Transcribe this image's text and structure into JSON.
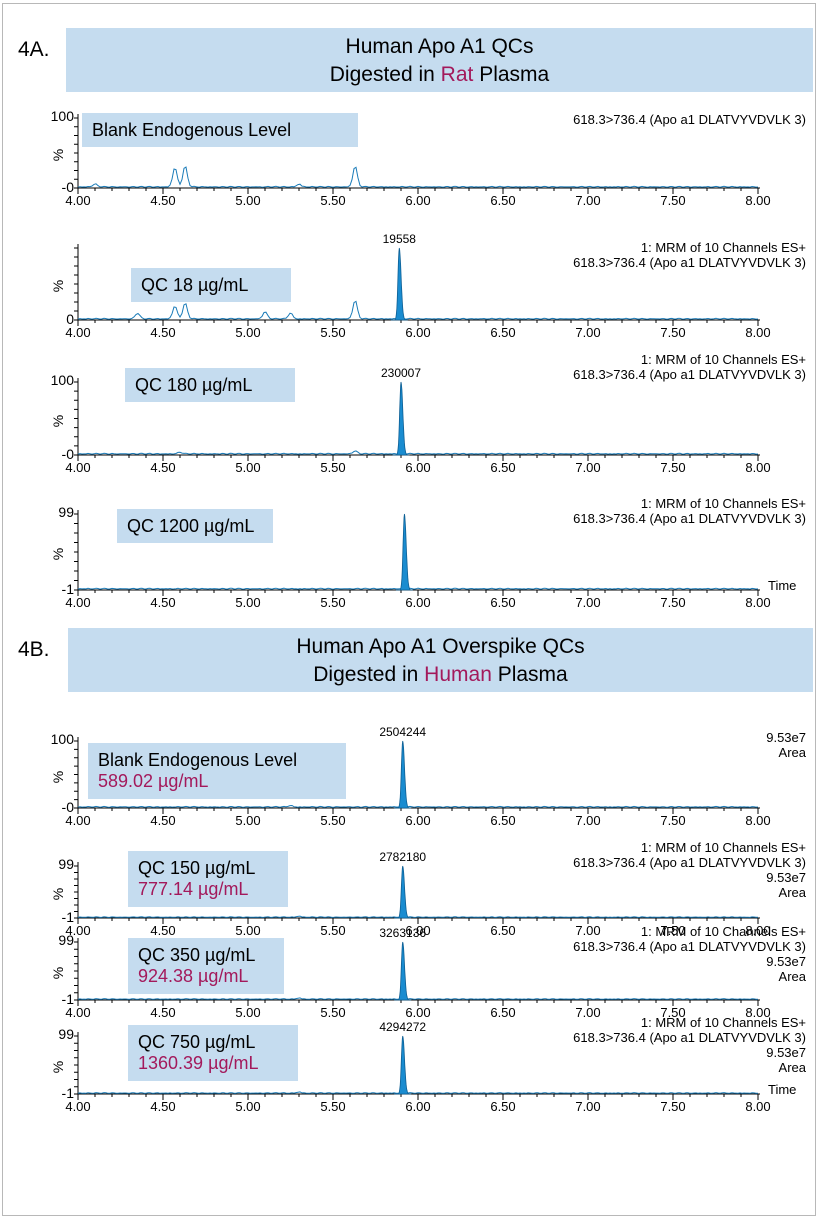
{
  "sections": [
    {
      "id": "4A.",
      "title_line1": "Human Apo A1 QCs",
      "title_line2_pre": "Digested in ",
      "title_line2_hl": "Rat",
      "title_line2_post": " Plasma"
    },
    {
      "id": "4B.",
      "title_line1": "Human Apo A1 Overspike QCs",
      "title_line2_pre": "Digested in ",
      "title_line2_hl": "Human",
      "title_line2_post": " Plasma"
    }
  ],
  "colors": {
    "trace": "#1a7bb8",
    "fill": "#1a8cd0",
    "label_bg": "#c5dcef",
    "highlight": "#a3195b"
  },
  "chart_data": [
    {
      "type": "line",
      "xlabel": "",
      "xlim": [
        4.0,
        8.0
      ],
      "xticks": [
        "4.00",
        "4.50",
        "5.00",
        "5.50",
        "6.00",
        "6.50",
        "7.00",
        "7.50",
        "8.00"
      ],
      "yticks": [
        "100",
        "-0"
      ],
      "ylabel": "%",
      "label": "Blank Endogenous  Level",
      "conc": "",
      "annotation": [
        "618.3>736.4 (Apo a1 DLATVYVDVLK 3)"
      ],
      "peak_label": "",
      "peak_rt": 5.89,
      "peak_height": 0,
      "noise": [
        [
          4.57,
          28
        ],
        [
          4.63,
          30
        ],
        [
          5.63,
          30
        ],
        [
          5.3,
          4
        ],
        [
          4.1,
          4
        ]
      ]
    },
    {
      "type": "line",
      "xlabel": "",
      "xlim": [
        4.0,
        8.0
      ],
      "xticks": [
        "4.00",
        "4.50",
        "5.00",
        "5.50",
        "6.00",
        "6.50",
        "7.00",
        "7.50",
        "8.00"
      ],
      "yticks": [
        "0"
      ],
      "ylabel": "%",
      "label": "QC 18 µg/mL",
      "conc": "",
      "annotation": [
        "1: MRM of 10 Channels ES+",
        "618.3>736.4 (Apo a1 DLATVYVDVLK 3)"
      ],
      "peak_label": "19558",
      "peak_rt": 5.89,
      "peak_height": 100,
      "noise": [
        [
          4.57,
          18
        ],
        [
          4.63,
          22
        ],
        [
          5.63,
          26
        ],
        [
          5.25,
          8
        ],
        [
          4.35,
          8
        ],
        [
          5.1,
          10
        ]
      ]
    },
    {
      "type": "line",
      "xlabel": "",
      "xlim": [
        4.0,
        8.0
      ],
      "xticks": [
        "4.00",
        "4.50",
        "5.00",
        "5.50",
        "6.00",
        "6.50",
        "7.00",
        "7.50",
        "8.00"
      ],
      "yticks": [
        "100",
        "-0"
      ],
      "ylabel": "%",
      "label": "QC 180 µg/mL",
      "conc": "",
      "annotation": [
        "1: MRM of 10 Channels ES+",
        "618.3>736.4 (Apo a1 DLATVYVDVLK 3)"
      ],
      "peak_label": "230007",
      "peak_rt": 5.9,
      "peak_height": 100,
      "noise": [
        [
          5.63,
          4
        ],
        [
          4.6,
          2
        ]
      ]
    },
    {
      "type": "line",
      "xlabel": "Time",
      "xlim": [
        4.0,
        8.0
      ],
      "xticks": [
        "4.00",
        "4.50",
        "5.00",
        "5.50",
        "6.00",
        "6.50",
        "7.00",
        "7.50",
        "8.00"
      ],
      "yticks": [
        "99",
        "-1"
      ],
      "ylabel": "%",
      "label": "QC 1200 µg/mL",
      "conc": "",
      "annotation": [
        "1: MRM of 10 Channels ES+",
        "618.3>736.4 (Apo a1 DLATVYVDVLK 3)"
      ],
      "peak_label": "",
      "peak_rt": 5.92,
      "peak_height": 100,
      "noise": []
    },
    {
      "type": "line",
      "xlabel": "",
      "xlim": [
        4.0,
        8.0
      ],
      "xticks": [
        "4.00",
        "4.50",
        "5.00",
        "5.50",
        "6.00",
        "6.50",
        "7.00",
        "7.50",
        "8.00"
      ],
      "yticks": [
        "100",
        "-0"
      ],
      "ylabel": "%",
      "label": "Blank Endogenous  Level",
      "conc": "589.02 µg/mL",
      "annotation": [
        "9.53e7",
        "Area"
      ],
      "peak_label": "2504244",
      "peak_rt": 5.91,
      "peak_height": 100,
      "noise": [
        [
          5.25,
          2
        ]
      ]
    },
    {
      "type": "line",
      "xlabel": "",
      "xlim": [
        4.0,
        8.0
      ],
      "xticks": [
        "4.00",
        "4.50",
        "5.00",
        "5.50",
        "6.00",
        "6.50",
        "7.00",
        "7.50",
        "8.00"
      ],
      "yticks": [
        "99",
        "-1"
      ],
      "ylabel": "%",
      "label": "QC 150 µg/mL",
      "conc": "777.14 µg/mL",
      "annotation": [
        "1: MRM of 10 Channels ES+",
        "618.3>736.4 (Apo a1 DLATVYVDVLK 3)",
        "9.53e7",
        "Area"
      ],
      "peak_label": "2782180",
      "peak_rt": 5.91,
      "peak_height": 100,
      "noise": [
        [
          5.3,
          2
        ]
      ]
    },
    {
      "type": "line",
      "xlabel": "",
      "xlim": [
        4.0,
        8.0
      ],
      "xticks": [
        "4.00",
        "4.50",
        "5.00",
        "5.50",
        "6.00",
        "6.50",
        "7.00",
        "7.50",
        "8.00"
      ],
      "yticks": [
        "99",
        "-1"
      ],
      "ylabel": "%",
      "label": "QC 350 µg/mL",
      "conc": "924.38 µg/mL",
      "annotation": [
        "1: MRM of 10 Channels ES+",
        "618.3>736.4 (Apo a1 DLATVYVDVLK 3)",
        "9.53e7",
        "Area"
      ],
      "peak_label": "3263136",
      "peak_rt": 5.91,
      "peak_height": 100,
      "noise": [
        [
          5.3,
          2
        ]
      ]
    },
    {
      "type": "line",
      "xlabel": "Time",
      "xlim": [
        4.0,
        8.0
      ],
      "xticks": [
        "4.00",
        "4.50",
        "5.00",
        "5.50",
        "6.00",
        "6.50",
        "7.00",
        "7.50",
        "8.00"
      ],
      "yticks": [
        "99",
        "-1"
      ],
      "ylabel": "%",
      "label": "QC 750 µg/mL",
      "conc": "1360.39 µg/mL",
      "annotation": [
        "1: MRM of 10 Channels ES+",
        "618.3>736.4 (Apo a1 DLATVYVDVLK 3)",
        "9.53e7",
        "Area"
      ],
      "peak_label": "4294272",
      "peak_rt": 5.91,
      "peak_height": 100,
      "noise": [
        [
          5.3,
          2
        ]
      ]
    }
  ]
}
